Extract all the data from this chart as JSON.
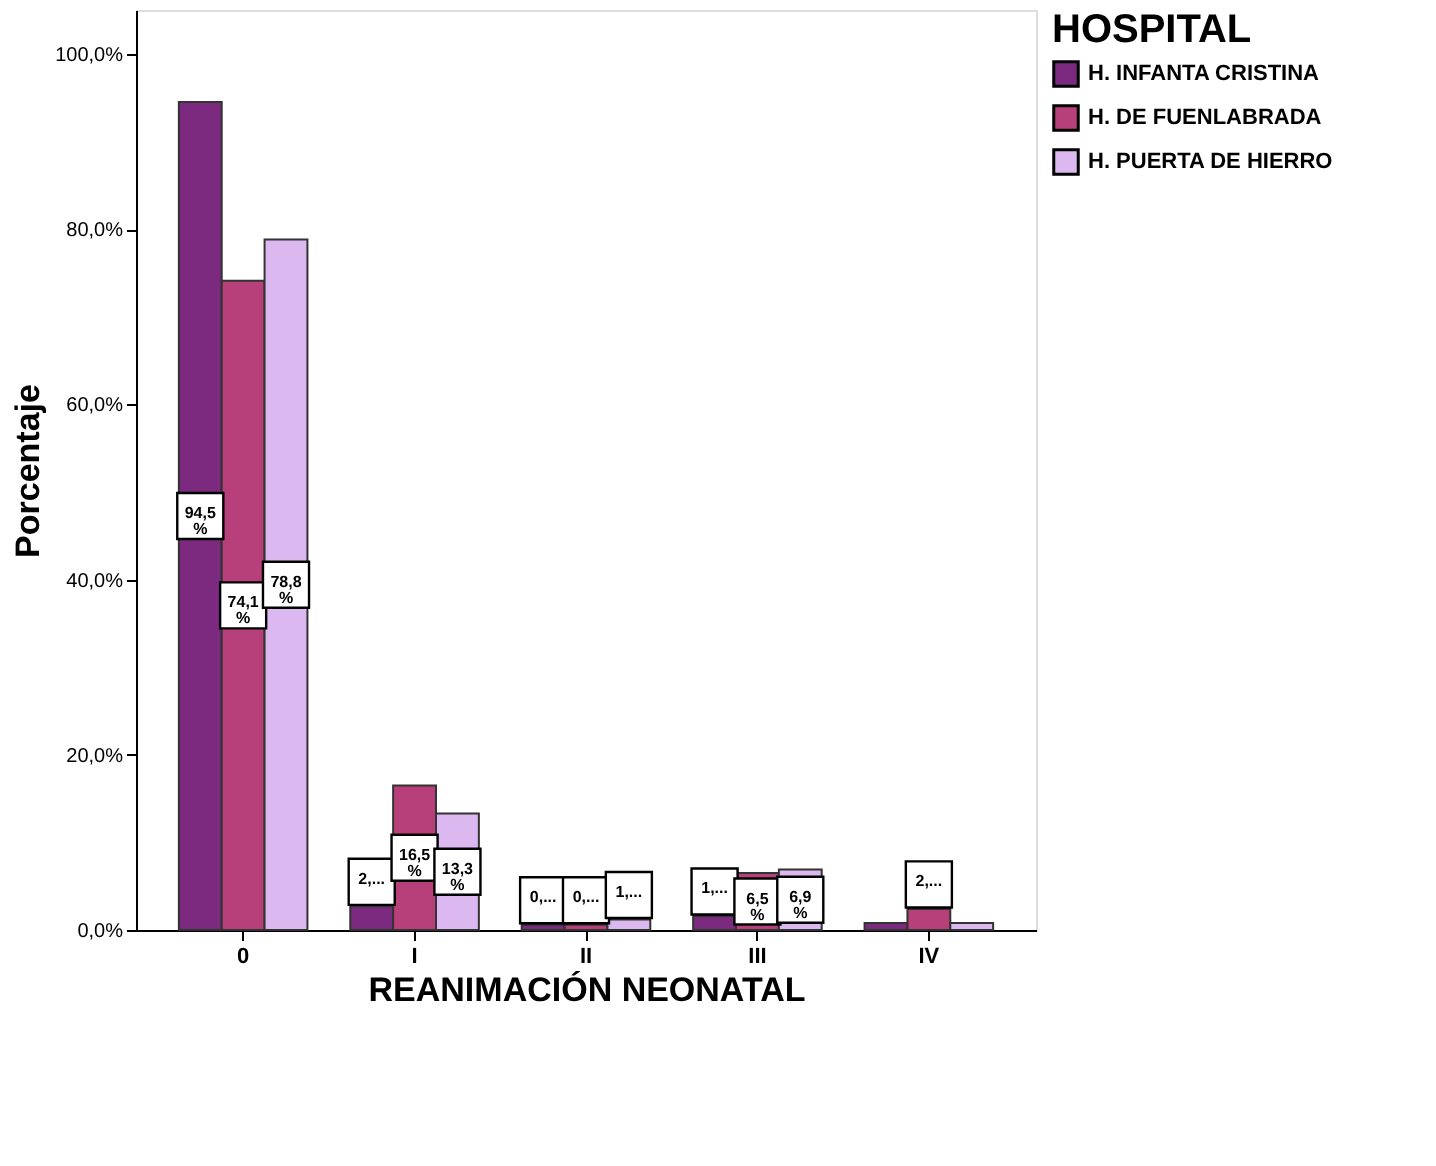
{
  "chart_data": {
    "type": "bar",
    "xlabel": "REANIMACIÓN NEONATAL",
    "ylabel": "Porcentaje",
    "legend_title": "HOSPITAL",
    "categories": [
      "0",
      "I",
      "II",
      "III",
      "IV"
    ],
    "series": [
      {
        "name": "H. INFANTA CRISTINA",
        "color": "#7b2a7f",
        "values": [
          94.5,
          2.7,
          0.6,
          1.6,
          0.8
        ],
        "value_labels": [
          "94,5 %",
          "2,...",
          "0,...",
          "1,...",
          null
        ]
      },
      {
        "name": "H. DE FUENLABRADA",
        "color": "#b8407a",
        "values": [
          74.1,
          16.5,
          0.6,
          6.5,
          2.4
        ],
        "value_labels": [
          "74,1 %",
          "16,5 %",
          "0,...",
          "6,5 %",
          "2,..."
        ]
      },
      {
        "name": "H. PUERTA DE HIERRO",
        "color": "#dcb8f0",
        "values": [
          78.8,
          13.3,
          1.2,
          6.9,
          0.8
        ],
        "value_labels": [
          "78,8 %",
          "13,3 %",
          "1,...",
          "6,9 %",
          null
        ]
      }
    ],
    "ylim": [
      0,
      105
    ],
    "yticks": [
      {
        "value": 0,
        "label": "0,0%"
      },
      {
        "value": 20,
        "label": "20,0%"
      },
      {
        "value": 40,
        "label": "40,0%"
      },
      {
        "value": 60,
        "label": "60,0%"
      },
      {
        "value": 80,
        "label": "80,0%"
      },
      {
        "value": 100,
        "label": "100,0%"
      }
    ],
    "grid": false,
    "legend": "top right"
  }
}
